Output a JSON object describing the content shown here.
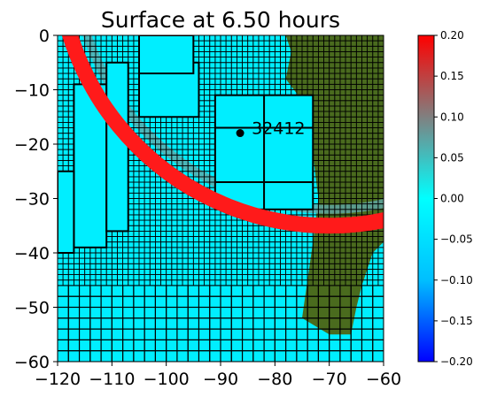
{
  "chart_data": {
    "type": "heatmap",
    "title": "Surface at 6.50 hours",
    "xlim": [
      -120,
      -60
    ],
    "ylim": [
      -60,
      0
    ],
    "xticks": [
      -120,
      -110,
      -100,
      -90,
      -80,
      -70,
      -60
    ],
    "yticks": [
      0,
      -10,
      -20,
      -30,
      -40,
      -50,
      -60
    ],
    "xtick_labels": [
      "−120",
      "−110",
      "−100",
      "−90",
      "−80",
      "−70",
      "−60"
    ],
    "ytick_labels": [
      "0",
      "−10",
      "−20",
      "−30",
      "−40",
      "−50",
      "−60"
    ],
    "colorbar": {
      "range": [
        -0.2,
        0.2
      ],
      "ticks": [
        0.2,
        0.15,
        0.1,
        0.05,
        0.0,
        -0.05,
        -0.1,
        -0.15,
        -0.2
      ],
      "tick_labels": [
        "0.20",
        "0.15",
        "0.10",
        "0.05",
        "0.00",
        "−0.05",
        "−0.10",
        "−0.15",
        "−0.20"
      ],
      "colormap": [
        "#0000ff",
        "#00bfff",
        "#00ffff",
        "#808080",
        "#ff0000"
      ]
    },
    "colors": {
      "water": "#00eeff",
      "land": "#4a6b1e",
      "land_dark": "#2f4a16",
      "grid_line": "#000000"
    },
    "gauge": {
      "label": "32412",
      "x": -86.4,
      "y": -17.97
    },
    "refined_patches": [
      {
        "x": [
          -117,
          -111
        ],
        "y": [
          -39,
          -9
        ]
      },
      {
        "x": [
          -111,
          -107
        ],
        "y": [
          -36,
          -5
        ]
      },
      {
        "x": [
          -105,
          -94
        ],
        "y": [
          -15,
          -5
        ]
      },
      {
        "x": [
          -105,
          -95
        ],
        "y": [
          -7,
          0
        ]
      },
      {
        "x": [
          -91,
          -73
        ],
        "y": [
          -32,
          -11
        ]
      },
      {
        "x": [
          -120,
          -117
        ],
        "y": [
          -40,
          -25
        ]
      }
    ],
    "wave_front": {
      "center_x": -70,
      "center_y": 15,
      "radius": 50,
      "width": 1.8
    }
  }
}
